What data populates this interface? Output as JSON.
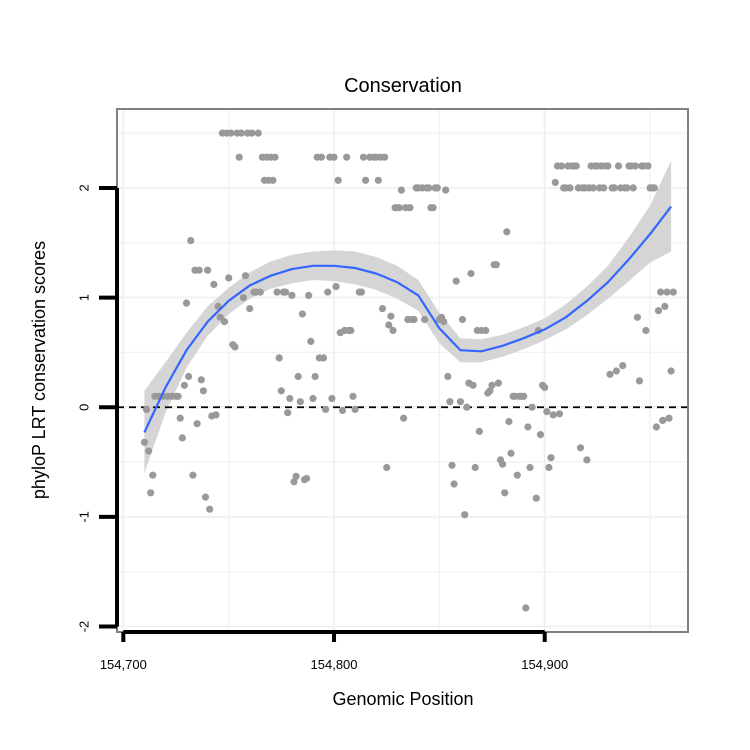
{
  "chart_data": {
    "type": "scatter",
    "title": "Conservation",
    "xlabel": "Genomic Position",
    "ylabel": "phyloP LRT conservation scores",
    "xlim": [
      154697,
      154968
    ],
    "ylim": [
      -2.05,
      2.72
    ],
    "x_ticks": [
      154700,
      154800,
      154900
    ],
    "x_tick_labels": [
      "154,700",
      "154,800",
      "154,900"
    ],
    "y_ticks": [
      -2,
      -1,
      0,
      1,
      2
    ],
    "y_tick_labels": [
      "-2",
      "-1",
      "0",
      "1",
      "2"
    ],
    "grid": true,
    "reference_line": {
      "y": 0,
      "style": "dashed"
    },
    "colors": {
      "points": "#999999",
      "smooth": "#3366ff",
      "ribbon": "#d3d3d3",
      "panel_border": "#808080",
      "grid": "#f2f2f2"
    },
    "points": [
      [
        154710,
        -0.32
      ],
      [
        154711,
        -0.02
      ],
      [
        154712,
        -0.4
      ],
      [
        154713,
        -0.78
      ],
      [
        154714,
        -0.62
      ],
      [
        154715,
        0.1
      ],
      [
        154717,
        0.1
      ],
      [
        154719,
        0.1
      ],
      [
        154721,
        0.1
      ],
      [
        154723,
        0.1
      ],
      [
        154725,
        0.1
      ],
      [
        154726,
        0.1
      ],
      [
        154727,
        -0.1
      ],
      [
        154728,
        -0.28
      ],
      [
        154729,
        0.2
      ],
      [
        154730,
        0.95
      ],
      [
        154731,
        0.28
      ],
      [
        154732,
        1.52
      ],
      [
        154733,
        -0.62
      ],
      [
        154734,
        1.25
      ],
      [
        154735,
        -0.15
      ],
      [
        154736,
        1.25
      ],
      [
        154737,
        0.25
      ],
      [
        154738,
        0.15
      ],
      [
        154739,
        -0.82
      ],
      [
        154740,
        1.25
      ],
      [
        154741,
        -0.93
      ],
      [
        154742,
        -0.08
      ],
      [
        154743,
        1.12
      ],
      [
        154744,
        -0.07
      ],
      [
        154745,
        0.92
      ],
      [
        154746,
        0.82
      ],
      [
        154747,
        2.5
      ],
      [
        154748,
        0.78
      ],
      [
        154749,
        2.5
      ],
      [
        154750,
        1.18
      ],
      [
        154751,
        2.5
      ],
      [
        154752,
        0.57
      ],
      [
        154753,
        0.55
      ],
      [
        154754,
        2.5
      ],
      [
        154755,
        2.28
      ],
      [
        154756,
        2.5
      ],
      [
        154757,
        1.0
      ],
      [
        154758,
        1.2
      ],
      [
        154759,
        2.5
      ],
      [
        154760,
        0.9
      ],
      [
        154761,
        2.5
      ],
      [
        154762,
        1.05
      ],
      [
        154763,
        1.05
      ],
      [
        154764,
        2.5
      ],
      [
        154765,
        1.05
      ],
      [
        154766,
        2.28
      ],
      [
        154767,
        2.07
      ],
      [
        154768,
        2.28
      ],
      [
        154769,
        2.07
      ],
      [
        154770,
        2.28
      ],
      [
        154771,
        2.07
      ],
      [
        154772,
        2.28
      ],
      [
        154773,
        1.05
      ],
      [
        154774,
        0.45
      ],
      [
        154775,
        0.15
      ],
      [
        154776,
        1.05
      ],
      [
        154777,
        1.05
      ],
      [
        154778,
        -0.05
      ],
      [
        154779,
        0.08
      ],
      [
        154780,
        1.02
      ],
      [
        154781,
        -0.68
      ],
      [
        154782,
        -0.63
      ],
      [
        154783,
        0.28
      ],
      [
        154784,
        0.05
      ],
      [
        154785,
        0.85
      ],
      [
        154786,
        -0.66
      ],
      [
        154787,
        -0.65
      ],
      [
        154788,
        1.02
      ],
      [
        154789,
        0.6
      ],
      [
        154790,
        0.08
      ],
      [
        154791,
        0.28
      ],
      [
        154792,
        2.28
      ],
      [
        154793,
        0.45
      ],
      [
        154794,
        2.28
      ],
      [
        154795,
        0.45
      ],
      [
        154796,
        -0.02
      ],
      [
        154797,
        1.05
      ],
      [
        154798,
        2.28
      ],
      [
        154799,
        0.08
      ],
      [
        154800,
        2.28
      ],
      [
        154801,
        1.1
      ],
      [
        154802,
        2.07
      ],
      [
        154803,
        0.68
      ],
      [
        154804,
        -0.03
      ],
      [
        154805,
        0.7
      ],
      [
        154806,
        2.28
      ],
      [
        154807,
        0.7
      ],
      [
        154808,
        0.7
      ],
      [
        154809,
        0.1
      ],
      [
        154810,
        -0.02
      ],
      [
        154812,
        1.05
      ],
      [
        154813,
        1.05
      ],
      [
        154814,
        2.28
      ],
      [
        154815,
        2.07
      ],
      [
        154817,
        2.28
      ],
      [
        154819,
        2.28
      ],
      [
        154820,
        2.28
      ],
      [
        154821,
        2.07
      ],
      [
        154822,
        2.28
      ],
      [
        154823,
        0.9
      ],
      [
        154824,
        2.28
      ],
      [
        154825,
        -0.55
      ],
      [
        154826,
        0.75
      ],
      [
        154827,
        0.83
      ],
      [
        154828,
        0.7
      ],
      [
        154829,
        1.82
      ],
      [
        154830,
        1.82
      ],
      [
        154831,
        1.82
      ],
      [
        154832,
        1.98
      ],
      [
        154833,
        -0.1
      ],
      [
        154834,
        1.82
      ],
      [
        154835,
        0.8
      ],
      [
        154836,
        1.82
      ],
      [
        154837,
        0.8
      ],
      [
        154838,
        0.8
      ],
      [
        154839,
        2.0
      ],
      [
        154840,
        2.0
      ],
      [
        154842,
        2.0
      ],
      [
        154843,
        0.8
      ],
      [
        154844,
        2.0
      ],
      [
        154845,
        2.0
      ],
      [
        154846,
        1.82
      ],
      [
        154847,
        1.82
      ],
      [
        154848,
        2.0
      ],
      [
        154849,
        2.0
      ],
      [
        154850,
        0.8
      ],
      [
        154851,
        0.82
      ],
      [
        154852,
        0.78
      ],
      [
        154853,
        1.98
      ],
      [
        154854,
        0.28
      ],
      [
        154855,
        0.05
      ],
      [
        154856,
        -0.53
      ],
      [
        154857,
        -0.7
      ],
      [
        154858,
        1.15
      ],
      [
        154860,
        0.05
      ],
      [
        154861,
        0.8
      ],
      [
        154862,
        -0.98
      ],
      [
        154863,
        0.0
      ],
      [
        154864,
        0.22
      ],
      [
        154865,
        1.22
      ],
      [
        154866,
        0.2
      ],
      [
        154867,
        -0.55
      ],
      [
        154868,
        0.7
      ],
      [
        154869,
        -0.22
      ],
      [
        154870,
        0.7
      ],
      [
        154872,
        0.7
      ],
      [
        154873,
        0.13
      ],
      [
        154874,
        0.15
      ],
      [
        154875,
        0.2
      ],
      [
        154876,
        1.3
      ],
      [
        154877,
        1.3
      ],
      [
        154878,
        0.22
      ],
      [
        154879,
        -0.48
      ],
      [
        154880,
        -0.52
      ],
      [
        154881,
        -0.78
      ],
      [
        154882,
        1.6
      ],
      [
        154883,
        -0.13
      ],
      [
        154884,
        -0.42
      ],
      [
        154885,
        0.1
      ],
      [
        154886,
        0.1
      ],
      [
        154887,
        -0.62
      ],
      [
        154888,
        0.1
      ],
      [
        154889,
        0.1
      ],
      [
        154890,
        0.1
      ],
      [
        154891,
        -1.83
      ],
      [
        154892,
        -0.18
      ],
      [
        154893,
        -0.55
      ],
      [
        154894,
        0.0
      ],
      [
        154896,
        -0.83
      ],
      [
        154897,
        0.7
      ],
      [
        154898,
        -0.25
      ],
      [
        154899,
        0.2
      ],
      [
        154900,
        0.18
      ],
      [
        154901,
        -0.04
      ],
      [
        154902,
        -0.55
      ],
      [
        154903,
        -0.46
      ],
      [
        154904,
        -0.07
      ],
      [
        154905,
        2.05
      ],
      [
        154906,
        2.2
      ],
      [
        154907,
        -0.06
      ],
      [
        154908,
        2.2
      ],
      [
        154909,
        2.0
      ],
      [
        154910,
        2.0
      ],
      [
        154911,
        2.2
      ],
      [
        154912,
        2.0
      ],
      [
        154913,
        2.2
      ],
      [
        154914,
        2.2
      ],
      [
        154915,
        2.2
      ],
      [
        154916,
        2.0
      ],
      [
        154917,
        -0.37
      ],
      [
        154918,
        2.0
      ],
      [
        154919,
        2.0
      ],
      [
        154920,
        -0.48
      ],
      [
        154921,
        2.0
      ],
      [
        154922,
        2.2
      ],
      [
        154923,
        2.0
      ],
      [
        154924,
        2.2
      ],
      [
        154925,
        2.2
      ],
      [
        154926,
        2.0
      ],
      [
        154927,
        2.2
      ],
      [
        154928,
        2.0
      ],
      [
        154929,
        2.2
      ],
      [
        154930,
        2.2
      ],
      [
        154931,
        0.3
      ],
      [
        154932,
        2.0
      ],
      [
        154933,
        2.0
      ],
      [
        154934,
        0.33
      ],
      [
        154935,
        2.2
      ],
      [
        154936,
        2.0
      ],
      [
        154937,
        0.38
      ],
      [
        154938,
        2.0
      ],
      [
        154939,
        2.0
      ],
      [
        154940,
        2.2
      ],
      [
        154941,
        2.2
      ],
      [
        154942,
        2.0
      ],
      [
        154943,
        2.2
      ],
      [
        154944,
        0.82
      ],
      [
        154945,
        0.24
      ],
      [
        154946,
        2.2
      ],
      [
        154947,
        2.2
      ],
      [
        154948,
        0.7
      ],
      [
        154949,
        2.2
      ],
      [
        154950,
        2.0
      ],
      [
        154951,
        2.0
      ],
      [
        154952,
        2.0
      ],
      [
        154953,
        -0.18
      ],
      [
        154954,
        0.88
      ],
      [
        154955,
        1.05
      ],
      [
        154956,
        -0.12
      ],
      [
        154957,
        0.92
      ],
      [
        154958,
        1.05
      ],
      [
        154959,
        -0.1
      ],
      [
        154960,
        0.33
      ],
      [
        154961,
        1.05
      ]
    ],
    "smooth": {
      "x": [
        154710,
        154720,
        154730,
        154740,
        154750,
        154760,
        154770,
        154780,
        154790,
        154800,
        154810,
        154820,
        154830,
        154840,
        154850,
        154860,
        154870,
        154880,
        154890,
        154900,
        154910,
        154920,
        154930,
        154940,
        154950,
        154960
      ],
      "y": [
        -0.23,
        0.18,
        0.52,
        0.78,
        0.97,
        1.11,
        1.2,
        1.26,
        1.29,
        1.29,
        1.27,
        1.22,
        1.14,
        1.02,
        0.72,
        0.52,
        0.51,
        0.56,
        0.63,
        0.71,
        0.82,
        0.97,
        1.14,
        1.35,
        1.58,
        1.83
      ],
      "lower": [
        -0.6,
        -0.05,
        0.36,
        0.65,
        0.85,
        0.99,
        1.08,
        1.13,
        1.16,
        1.15,
        1.12,
        1.07,
        0.99,
        0.88,
        0.58,
        0.41,
        0.41,
        0.46,
        0.53,
        0.61,
        0.71,
        0.84,
        0.99,
        1.15,
        1.32,
        1.42
      ],
      "upper": [
        0.15,
        0.41,
        0.68,
        0.92,
        1.09,
        1.23,
        1.33,
        1.39,
        1.42,
        1.43,
        1.42,
        1.37,
        1.29,
        1.16,
        0.86,
        0.63,
        0.62,
        0.66,
        0.73,
        0.81,
        0.94,
        1.1,
        1.29,
        1.55,
        1.84,
        2.25
      ]
    }
  }
}
